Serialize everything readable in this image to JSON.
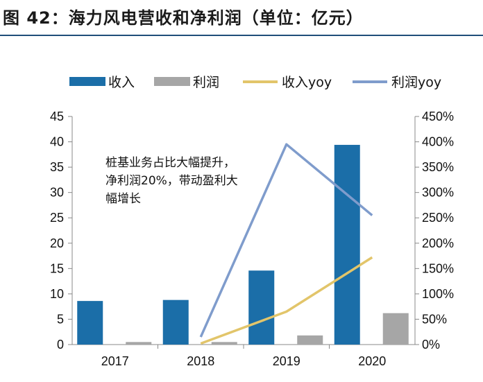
{
  "figure": {
    "title": "图  42：海力风电营收和净利润（单位：亿元）"
  },
  "colors": {
    "revenue": "#1b6ea8",
    "profit": "#a6a6a6",
    "revenue_yoy": "#e2c56a",
    "profit_yoy": "#7f9ccc",
    "axis": "#888888"
  },
  "chart_data": {
    "type": "bar",
    "title": "海力风电营收和净利润（单位：亿元）",
    "categories": [
      "2017",
      "2018",
      "2019",
      "2020"
    ],
    "series": [
      {
        "name": "收入",
        "kind": "bar",
        "axis": "left",
        "values": [
          8.6,
          8.8,
          14.6,
          39.4
        ]
      },
      {
        "name": "利润",
        "kind": "bar",
        "axis": "left",
        "values": [
          0.5,
          0.5,
          1.8,
          6.2
        ]
      },
      {
        "name": "收入yoy",
        "kind": "line",
        "axis": "right",
        "values": [
          null,
          2,
          65,
          172
        ]
      },
      {
        "name": "利润yoy",
        "kind": "line",
        "axis": "right",
        "values": [
          null,
          15,
          395,
          255
        ]
      }
    ],
    "y_left": {
      "min": 0,
      "max": 45,
      "step": 5,
      "ticks": [
        "0",
        "5",
        "10",
        "15",
        "20",
        "25",
        "30",
        "35",
        "40",
        "45"
      ]
    },
    "y_right": {
      "min": 0,
      "max": 450,
      "step": 50,
      "unit": "%",
      "ticks": [
        "0%",
        "50%",
        "100%",
        "150%",
        "200%",
        "250%",
        "300%",
        "350%",
        "400%",
        "450%"
      ]
    },
    "legend": [
      "收入",
      "利润",
      "收入yoy",
      "利润yoy"
    ],
    "legend_position": "top",
    "annotation": [
      "桩基业务占比大幅提升，",
      "净利润20%，带动盈利大",
      "幅增长"
    ],
    "grid": false
  }
}
